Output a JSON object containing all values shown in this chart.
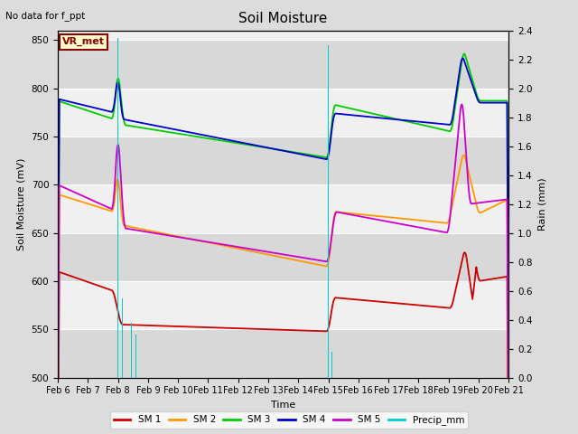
{
  "title": "Soil Moisture",
  "xlabel": "Time",
  "ylabel_left": "Soil Moisture (mV)",
  "ylabel_right": "Rain (mm)",
  "annotation": "No data for f_ppt",
  "vr_met_label": "VR_met",
  "ylim_left": [
    500,
    860
  ],
  "ylim_right": [
    0.0,
    2.4
  ],
  "yticks_left": [
    500,
    550,
    600,
    650,
    700,
    750,
    800,
    850
  ],
  "yticks_right": [
    0.0,
    0.2,
    0.4,
    0.6,
    0.8,
    1.0,
    1.2,
    1.4,
    1.6,
    1.8,
    2.0,
    2.2,
    2.4
  ],
  "xtick_labels": [
    "Feb 6",
    "Feb 7",
    "Feb 8",
    "Feb 9",
    "Feb 10",
    "Feb 11",
    "Feb 12",
    "Feb 13",
    "Feb 14",
    "Feb 15",
    "Feb 16",
    "Feb 17",
    "Feb 18",
    "Feb 19",
    "Feb 20",
    "Feb 21"
  ],
  "colors": {
    "SM1": "#cc0000",
    "SM2": "#ff9900",
    "SM3": "#00cc00",
    "SM4": "#0000cc",
    "SM5": "#cc00cc",
    "Precip": "#00cccc"
  },
  "rain_positions": [
    2.0,
    2.15,
    2.45,
    2.6,
    9.0,
    9.12
  ],
  "rain_heights": [
    2.35,
    0.55,
    0.38,
    0.3,
    2.3,
    0.18
  ],
  "rain_bar_width": 0.05
}
